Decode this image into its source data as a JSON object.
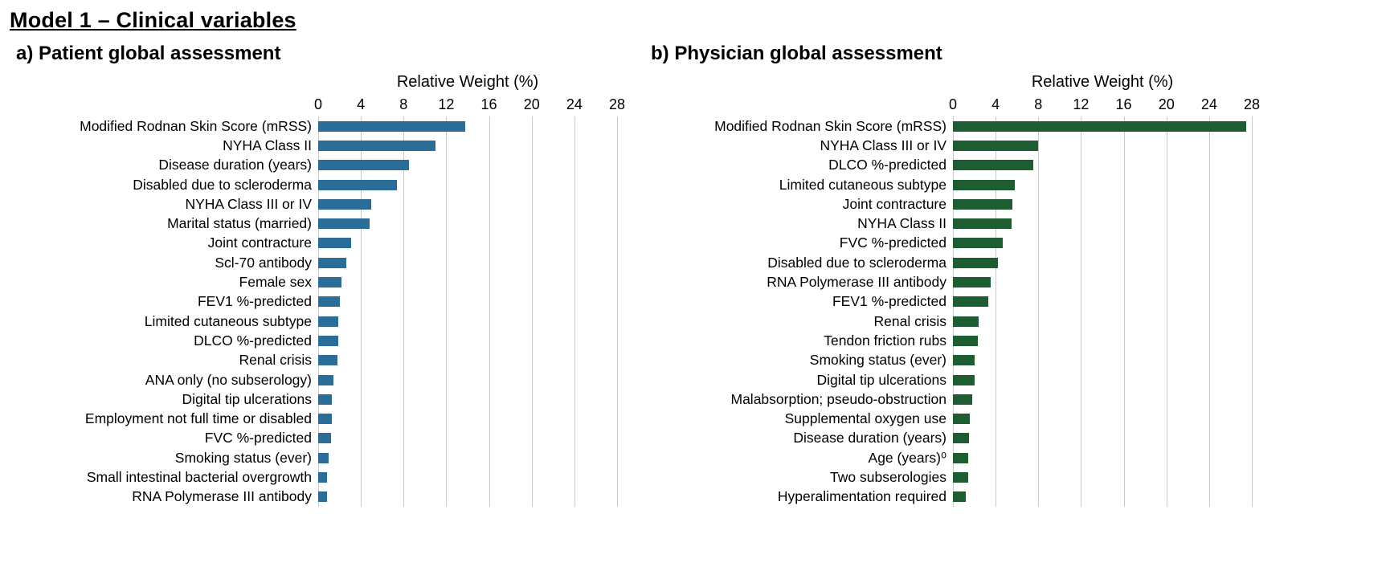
{
  "title": "Model 1 – Clinical variables",
  "colors": {
    "patient_bar": "#2b6c99",
    "physician_bar": "#1e5c31",
    "gridline": "#c9c9c9",
    "text": "#000000"
  },
  "chart_data": [
    {
      "type": "bar",
      "orientation": "horizontal",
      "title": "a) Patient global assessment",
      "xlabel": "Relative Weight (%)",
      "xlim": [
        0,
        28
      ],
      "ticks": [
        0,
        4,
        8,
        12,
        16,
        20,
        24,
        28
      ],
      "grid": true,
      "bar_color": "#2b6c99",
      "categories": [
        "Modified Rodnan Skin Score (mRSS)",
        "NYHA Class II",
        "Disease duration (years)",
        "Disabled due to scleroderma",
        "NYHA Class III or IV",
        "Marital status (married)",
        "Joint contracture",
        "Scl-70 antibody",
        "Female sex",
        "FEV1 %-predicted",
        "Limited cutaneous subtype",
        "DLCO %-predicted",
        "Renal crisis",
        "ANA only (no subserology)",
        "Digital tip ulcerations",
        "Employment not full time or disabled",
        "FVC %-predicted",
        "Smoking status (ever)",
        "Small intestinal bacterial overgrowth",
        "RNA Polymerase III antibody"
      ],
      "values": [
        13.8,
        11.0,
        8.5,
        7.4,
        5.0,
        4.8,
        3.1,
        2.6,
        2.2,
        2.0,
        1.9,
        1.9,
        1.8,
        1.4,
        1.3,
        1.3,
        1.2,
        1.0,
        0.8,
        0.8
      ]
    },
    {
      "type": "bar",
      "orientation": "horizontal",
      "title": "b) Physician global assessment",
      "xlabel": "Relative Weight (%)",
      "xlim": [
        0,
        28
      ],
      "ticks": [
        0,
        4,
        8,
        12,
        16,
        20,
        24,
        28
      ],
      "grid": true,
      "bar_color": "#1e5c31",
      "categories": [
        "Modified Rodnan Skin Score (mRSS)",
        "NYHA Class III or IV",
        "DLCO %-predicted",
        "Limited cutaneous subtype",
        "Joint contracture",
        "NYHA Class II",
        "FVC %-predicted",
        "Disabled due to scleroderma",
        "RNA Polymerase III antibody",
        "FEV1 %-predicted",
        "Renal crisis",
        "Tendon friction rubs",
        "Smoking status (ever)",
        "Digital tip ulcerations",
        "Malabsorption; pseudo-obstruction",
        "Supplemental oxygen use",
        "Disease duration (years)",
        "Age (years)⁰",
        "Two subserologies",
        "Hyperalimentation required"
      ],
      "values": [
        27.5,
        8.0,
        7.5,
        5.8,
        5.6,
        5.5,
        4.7,
        4.2,
        3.5,
        3.3,
        2.4,
        2.3,
        2.0,
        2.0,
        1.8,
        1.6,
        1.5,
        1.4,
        1.4,
        1.2
      ]
    }
  ]
}
